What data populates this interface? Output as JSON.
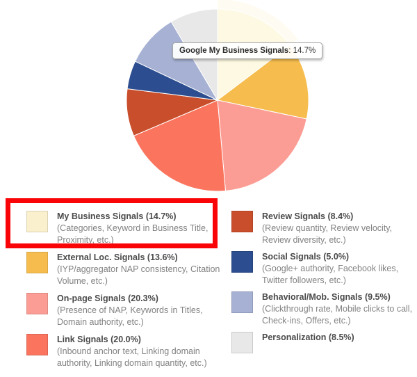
{
  "chart_data": {
    "type": "pie",
    "title": "",
    "legend_position": "bottom",
    "start_angle_deg": 0,
    "direction": "clockwise",
    "hovered_slice_index": 0,
    "labels": [
      "My Business Signals",
      "External Loc. Signals",
      "On-page Signals",
      "Link Signals",
      "Review Signals",
      "Social Signals",
      "Behavioral/Mob. Signals",
      "Personalization"
    ],
    "values": [
      14.7,
      13.6,
      20.3,
      20.0,
      8.4,
      5.0,
      9.5,
      8.5
    ],
    "slices": [
      {
        "label": "My Business Signals",
        "value": 14.7,
        "color": "#FAF0CE",
        "pie_color": "#FDF9E2",
        "legend_label": "My Business Signals (14.7%)",
        "legend_desc": "(Categories, Keyword in Business Title, Proximity, etc.)"
      },
      {
        "label": "External Loc. Signals",
        "value": 13.6,
        "color": "#F6BD4E",
        "legend_label": "External Loc. Signals (13.6%)",
        "legend_desc": "(IYP/aggregator NAP consistency, Citation Volume, etc.)"
      },
      {
        "label": "On-page Signals",
        "value": 20.3,
        "color": "#FB9D94",
        "legend_label": "On-page Signals (20.3%)",
        "legend_desc": "(Presence of NAP, Keywords in Titles, Domain authority, etc.)"
      },
      {
        "label": "Link Signals",
        "value": 20.0,
        "color": "#FA745E",
        "legend_label": "Link Signals (20.0%)",
        "legend_desc": "(Inbound anchor text, Linking domain authority, Linking domain quantity, etc.)"
      },
      {
        "label": "Review Signals",
        "value": 8.4,
        "color": "#C94E2B",
        "legend_label": "Review Signals (8.4%)",
        "legend_desc": "(Review quantity, Review velocity, Review diversity, etc.)"
      },
      {
        "label": "Social Signals",
        "value": 5.0,
        "color": "#2C4D8F",
        "legend_label": "Social Signals (5.0%)",
        "legend_desc": "(Google+ authority, Facebook likes, Twitter followers, etc.)"
      },
      {
        "label": "Behavioral/Mob. Signals",
        "value": 9.5,
        "color": "#A6B1D3",
        "legend_label": "Behavioral/Mob. Signals (9.5%)",
        "legend_desc": "(Clickthrough rate, Mobile clicks to call, Check-ins, Offers, etc.)"
      },
      {
        "label": "Personalization",
        "value": 8.5,
        "color": "#E9E8E8",
        "legend_label": "Personalization (8.5%)",
        "legend_desc": ""
      }
    ]
  },
  "tooltip": {
    "label": "Google My Business Signals",
    "separator": ": ",
    "value": "14.7%"
  },
  "annotation": {
    "shape": "rectangle",
    "color": "#F90507",
    "highlights": "legend-item-my-business"
  }
}
